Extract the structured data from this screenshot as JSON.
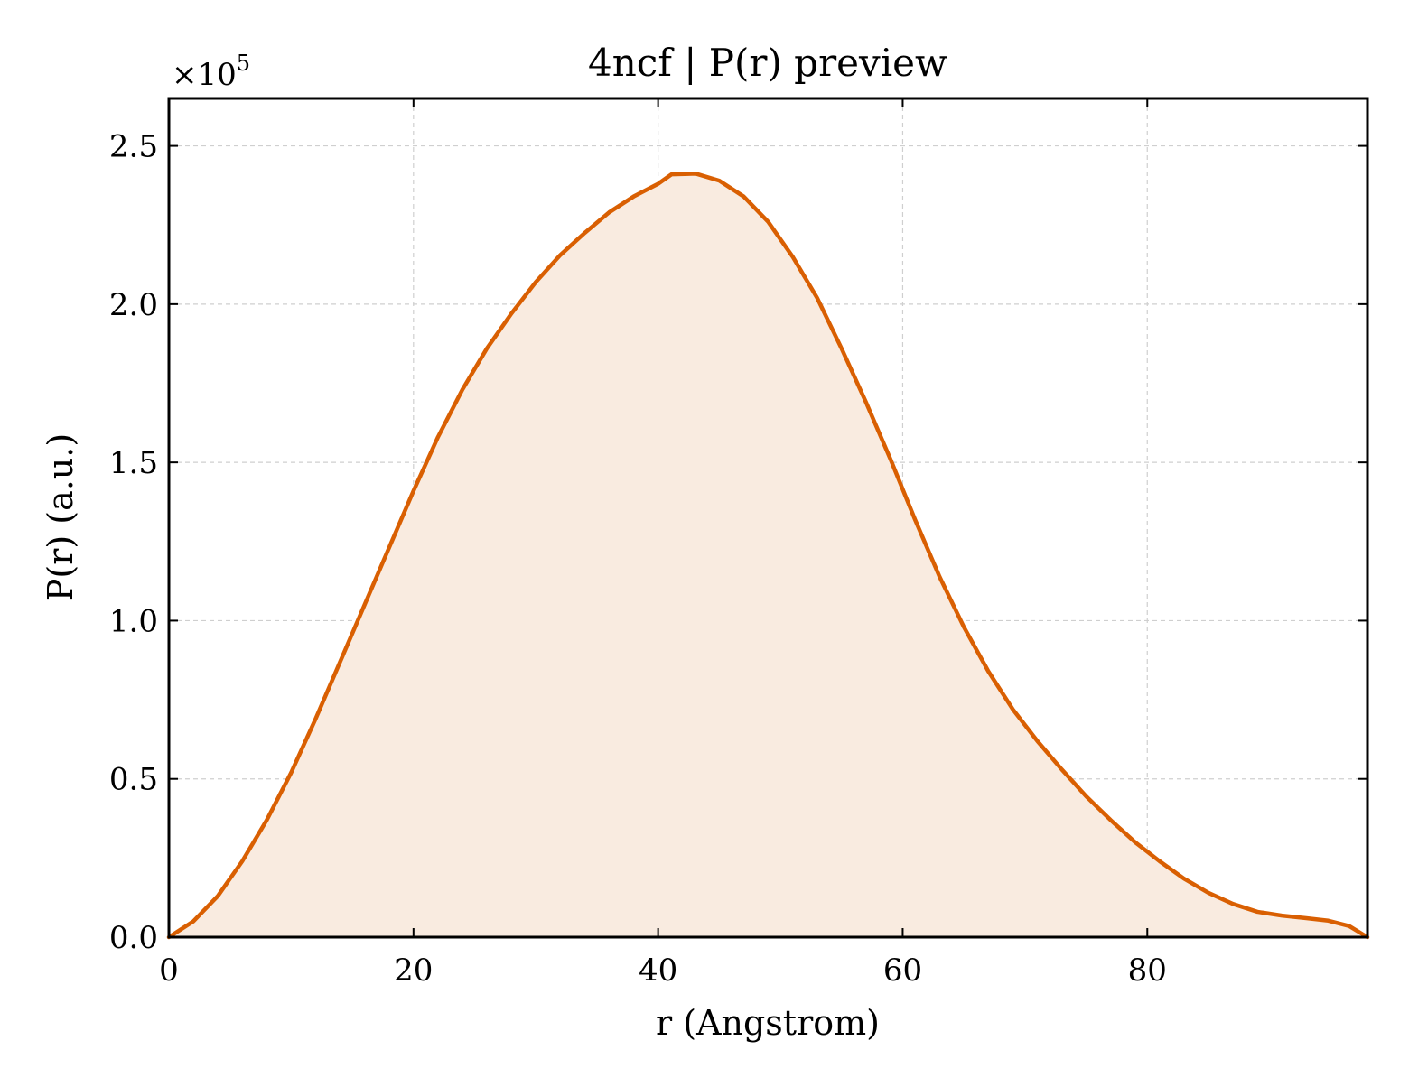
{
  "chart_data": {
    "type": "area",
    "title": "4ncf | P(r) preview",
    "xlabel": "r (Angstrom)",
    "ylabel": "P(r) (a.u.)",
    "y_multiplier_label": "×10",
    "y_multiplier_exponent": "5",
    "y_scale_factor": 100000,
    "xlim": [
      0,
      98
    ],
    "ylim": [
      0,
      2.65
    ],
    "xticks": [
      0,
      20,
      40,
      60,
      80
    ],
    "xtick_labels": [
      "0",
      "20",
      "40",
      "60",
      "80"
    ],
    "yticks": [
      0,
      0.5,
      1.0,
      1.5,
      2.0,
      2.5
    ],
    "ytick_labels": [
      "0.0",
      "0.5",
      "1.0",
      "1.5",
      "2.0",
      "2.5"
    ],
    "grid": true,
    "legend": false,
    "line_color": "#d95f02",
    "fill_color": "#f9ebe0",
    "series": [
      {
        "x": [
          0,
          2,
          4,
          6,
          8,
          10,
          12,
          14,
          16,
          18,
          20,
          22,
          24,
          26,
          28,
          30,
          32,
          34,
          36,
          38,
          40,
          41.1,
          43.1,
          45,
          47,
          49,
          51,
          53,
          55,
          57,
          59,
          61,
          63,
          65,
          67,
          69,
          71,
          73,
          75,
          77,
          79,
          81,
          83,
          85,
          87,
          89,
          91,
          93,
          94.8,
          96.5,
          98
        ],
        "y": [
          0.0,
          0.05,
          0.13,
          0.24,
          0.37,
          0.52,
          0.69,
          0.87,
          1.05,
          1.23,
          1.41,
          1.58,
          1.73,
          1.86,
          1.97,
          2.07,
          2.155,
          2.225,
          2.29,
          2.34,
          2.38,
          2.41,
          2.412,
          2.39,
          2.34,
          2.26,
          2.15,
          2.02,
          1.86,
          1.69,
          1.51,
          1.32,
          1.14,
          0.98,
          0.84,
          0.72,
          0.62,
          0.53,
          0.445,
          0.37,
          0.3,
          0.24,
          0.185,
          0.14,
          0.105,
          0.08,
          0.068,
          0.06,
          0.052,
          0.035,
          0.0
        ]
      }
    ]
  }
}
